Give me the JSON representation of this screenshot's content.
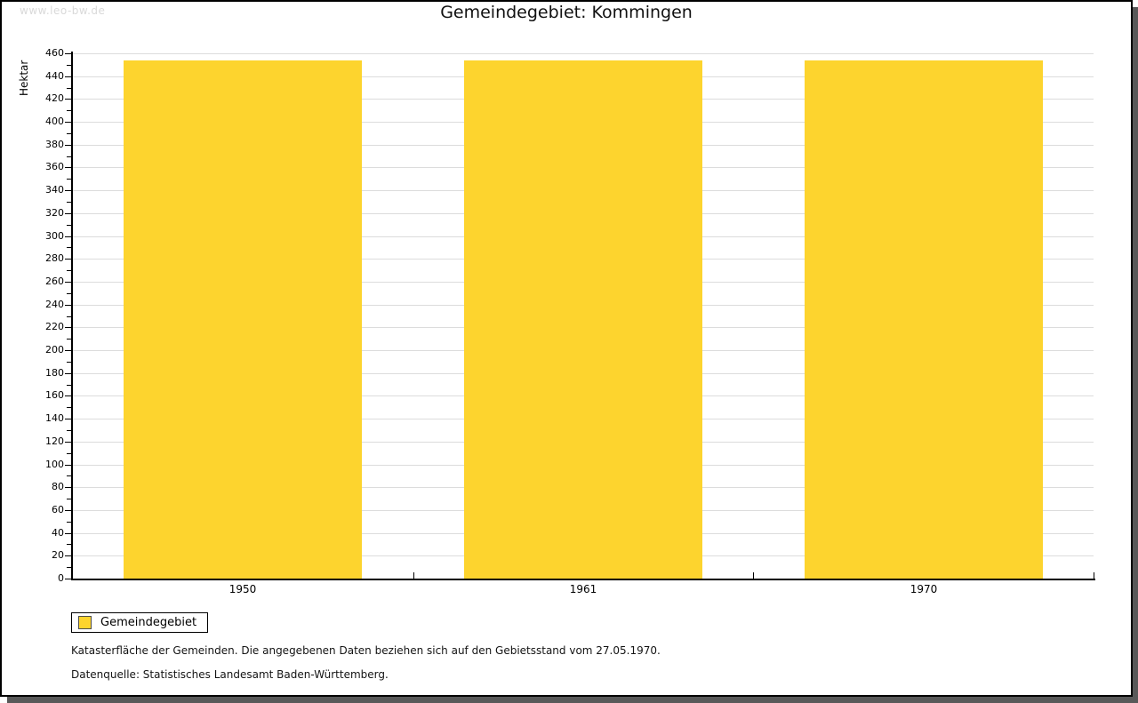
{
  "watermark": "www.leo-bw.de",
  "title": "Gemeindegebiet: Kommingen",
  "chart_data": {
    "type": "bar",
    "title": "Gemeindegebiet: Kommingen",
    "categories": [
      "1950",
      "1961",
      "1970"
    ],
    "series": [
      {
        "name": "Gemeindegebiet",
        "values": [
          454,
          454,
          454
        ],
        "color": "#FDD42E"
      }
    ],
    "xlabel": "",
    "ylabel": "Hektar",
    "ylim": [
      0,
      460
    ],
    "ytick_step": 20,
    "yminor_step": 10,
    "grid": true,
    "legend_position": "bottom-left"
  },
  "legend": {
    "items": [
      {
        "label": "Gemeindegebiet",
        "color": "#FDD42E"
      }
    ]
  },
  "footer": {
    "line1": "Katasterfläche der Gemeinden. Die angegebenen Daten beziehen sich auf den Gebietsstand vom 27.05.1970.",
    "line2": "Datenquelle: Statistisches Landesamt Baden-Württemberg."
  },
  "colors": {
    "bar": "#FDD42E",
    "grid": "#DCDCDC",
    "axis": "#000000",
    "shadow": "#595959",
    "watermark": "#D9D9D9",
    "title": "#111111"
  }
}
